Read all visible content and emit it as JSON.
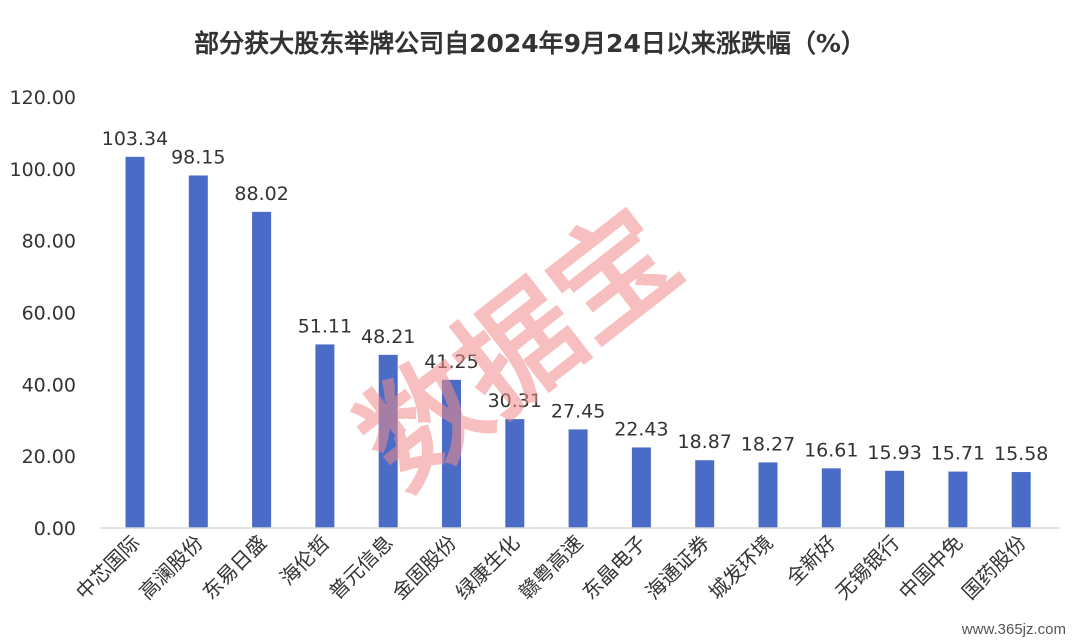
{
  "colors": {
    "bar": "#4a6cc7",
    "axis": "#d9d9d9",
    "text": "#333333",
    "watermark": "#f28b8b"
  },
  "watermark": "数据宝",
  "site_mark": "www.365jz.com",
  "chart_data": {
    "type": "bar",
    "title": "部分获大股东举牌公司自2024年9月24日以来涨跌幅（%）",
    "xlabel": "",
    "ylabel": "",
    "ylim": [
      0,
      120
    ],
    "ytick_labels": [
      "0.00",
      "20.00",
      "40.00",
      "60.00",
      "80.00",
      "100.00",
      "120.00"
    ],
    "grid": false,
    "categories": [
      "中芯国际",
      "高澜股份",
      "东易日盛",
      "海伦哲",
      "普元信息",
      "金固股份",
      "绿康生化",
      "赣粤高速",
      "东晶电子",
      "海通证券",
      "城发环境",
      "全新好",
      "无锡银行",
      "中国中免",
      "国药股份"
    ],
    "values": [
      103.34,
      98.15,
      88.02,
      51.11,
      48.21,
      41.25,
      30.31,
      27.45,
      22.43,
      18.87,
      18.27,
      16.61,
      15.93,
      15.71,
      15.58
    ],
    "value_labels": [
      "103.34",
      "98.15",
      "88.02",
      "51.11",
      "48.21",
      "41.25",
      "30.31",
      "27.45",
      "22.43",
      "18.87",
      "18.27",
      "16.61",
      "15.93",
      "15.71",
      "15.58"
    ]
  }
}
